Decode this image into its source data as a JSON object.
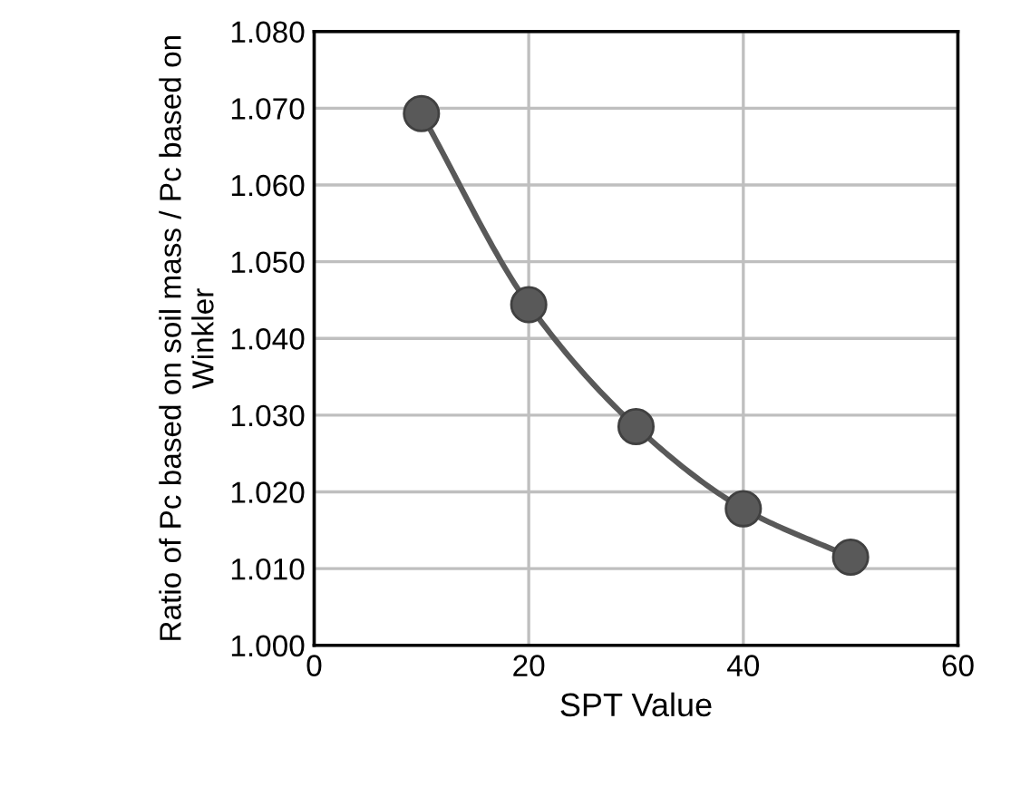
{
  "chart_data": {
    "type": "line",
    "xlabel": "SPT Value",
    "ylabel": "Ratio of Pc based on soil mass / Pc based on Winkler",
    "x": [
      10,
      20,
      30,
      40,
      50
    ],
    "series": [
      {
        "color": "#595959",
        "values": [
          1.0693,
          1.0444,
          1.0285,
          1.0178,
          1.0115
        ]
      }
    ],
    "xlim": [
      0,
      60
    ],
    "xticks": [
      0,
      20,
      40,
      60
    ],
    "ylim": [
      1.0,
      1.08
    ],
    "yticks": [
      {
        "value": 1.0,
        "label": "1.000"
      },
      {
        "value": 1.01,
        "label": "1.010"
      },
      {
        "value": 1.02,
        "label": "1.020"
      },
      {
        "value": 1.03,
        "label": "1.030"
      },
      {
        "value": 1.04,
        "label": "1.040"
      },
      {
        "value": 1.05,
        "label": "1.050"
      },
      {
        "value": 1.06,
        "label": "1.060"
      },
      {
        "value": 1.07,
        "label": "1.070"
      },
      {
        "value": 1.08,
        "label": "1.080"
      }
    ],
    "grid": true,
    "marker": "circle",
    "line_style": "solid"
  }
}
